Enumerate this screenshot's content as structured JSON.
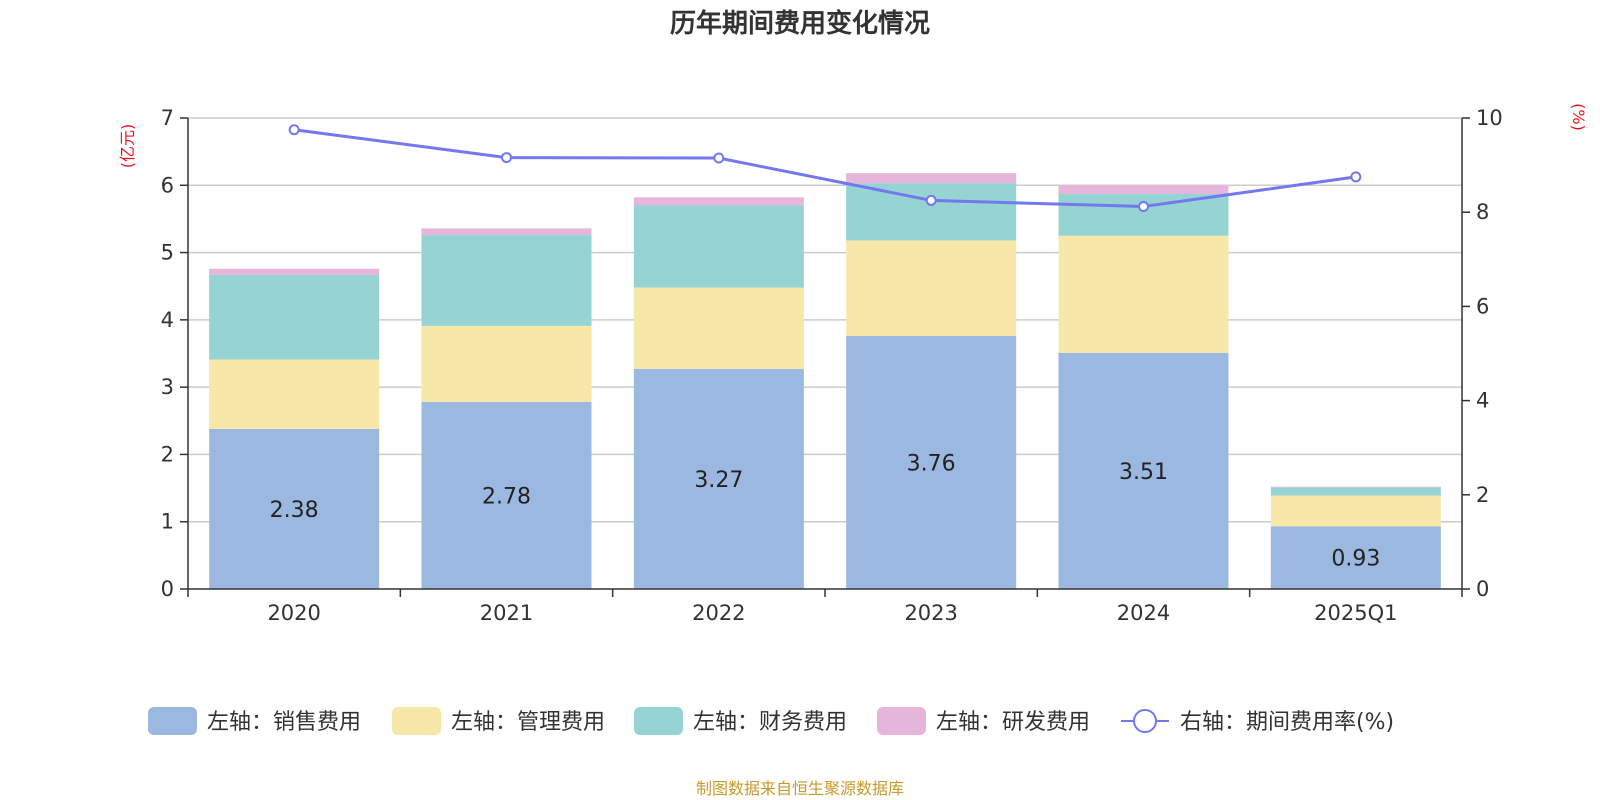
{
  "chart_data": {
    "type": "bar",
    "title": "历年期间费用变化情况",
    "categories": [
      "2020",
      "2021",
      "2022",
      "2023",
      "2024",
      "2025Q1"
    ],
    "left_axis": {
      "unit": "(亿元)",
      "ylim": [
        0,
        7
      ],
      "ticks": [
        0,
        1,
        2,
        3,
        4,
        5,
        6,
        7
      ]
    },
    "right_axis": {
      "unit": "(%)",
      "ylim": [
        0,
        10
      ],
      "ticks": [
        0,
        2,
        4,
        6,
        8,
        10
      ]
    },
    "series": [
      {
        "name": "左轴：销售费用",
        "color": "#9bb8e0",
        "values": [
          2.38,
          2.78,
          3.27,
          3.76,
          3.51,
          0.93
        ],
        "show_labels": true
      },
      {
        "name": "左轴：管理费用",
        "color": "#f7e7a8",
        "values": [
          1.03,
          1.13,
          1.21,
          1.42,
          1.74,
          0.46
        ]
      },
      {
        "name": "左轴：财务费用",
        "color": "#96d4d4",
        "values": [
          1.26,
          1.35,
          1.22,
          0.85,
          0.62,
          0.12
        ]
      },
      {
        "name": "左轴：研发费用",
        "color": "#e6b6da",
        "values": [
          0.09,
          0.1,
          0.12,
          0.15,
          0.13,
          0.01
        ]
      }
    ],
    "line": {
      "name": "右轴：期间费用率(%)",
      "color": "#7378ee",
      "values": [
        9.75,
        9.16,
        9.15,
        8.25,
        8.12,
        8.75
      ]
    },
    "grid": true,
    "legend": "bottom-center"
  },
  "source": "制图数据来自恒生聚源数据库"
}
